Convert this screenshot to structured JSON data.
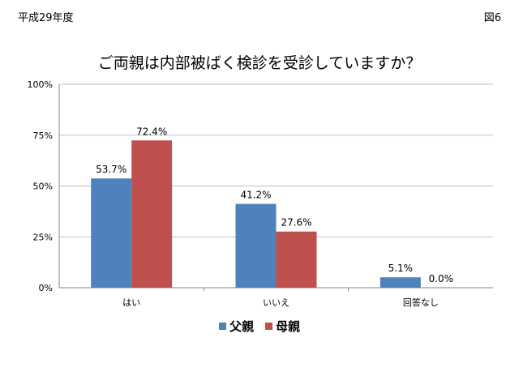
{
  "header": {
    "left": "平成29年度",
    "right": "図6"
  },
  "chart_data": {
    "type": "bar",
    "title": "ご両親は内部被ばく検診を受診していますか？",
    "categories": [
      "はい",
      "いいえ",
      "回答なし"
    ],
    "series": [
      {
        "name": "父親",
        "values": [
          53.7,
          41.2,
          5.1
        ],
        "labels": [
          "53.7%",
          "41.2%",
          "5.1%"
        ],
        "color": "#4f81bd"
      },
      {
        "name": "母親",
        "values": [
          72.4,
          27.6,
          0.0
        ],
        "labels": [
          "72.4%",
          "27.6%",
          "0.0%"
        ],
        "color": "#c0504d"
      }
    ],
    "ylim": [
      0,
      100
    ],
    "yticks": [
      0,
      25,
      50,
      75,
      100
    ],
    "ytick_labels": [
      "0%",
      "25%",
      "50%",
      "75%",
      "100%"
    ],
    "grid": true,
    "legend_position": "bottom"
  }
}
